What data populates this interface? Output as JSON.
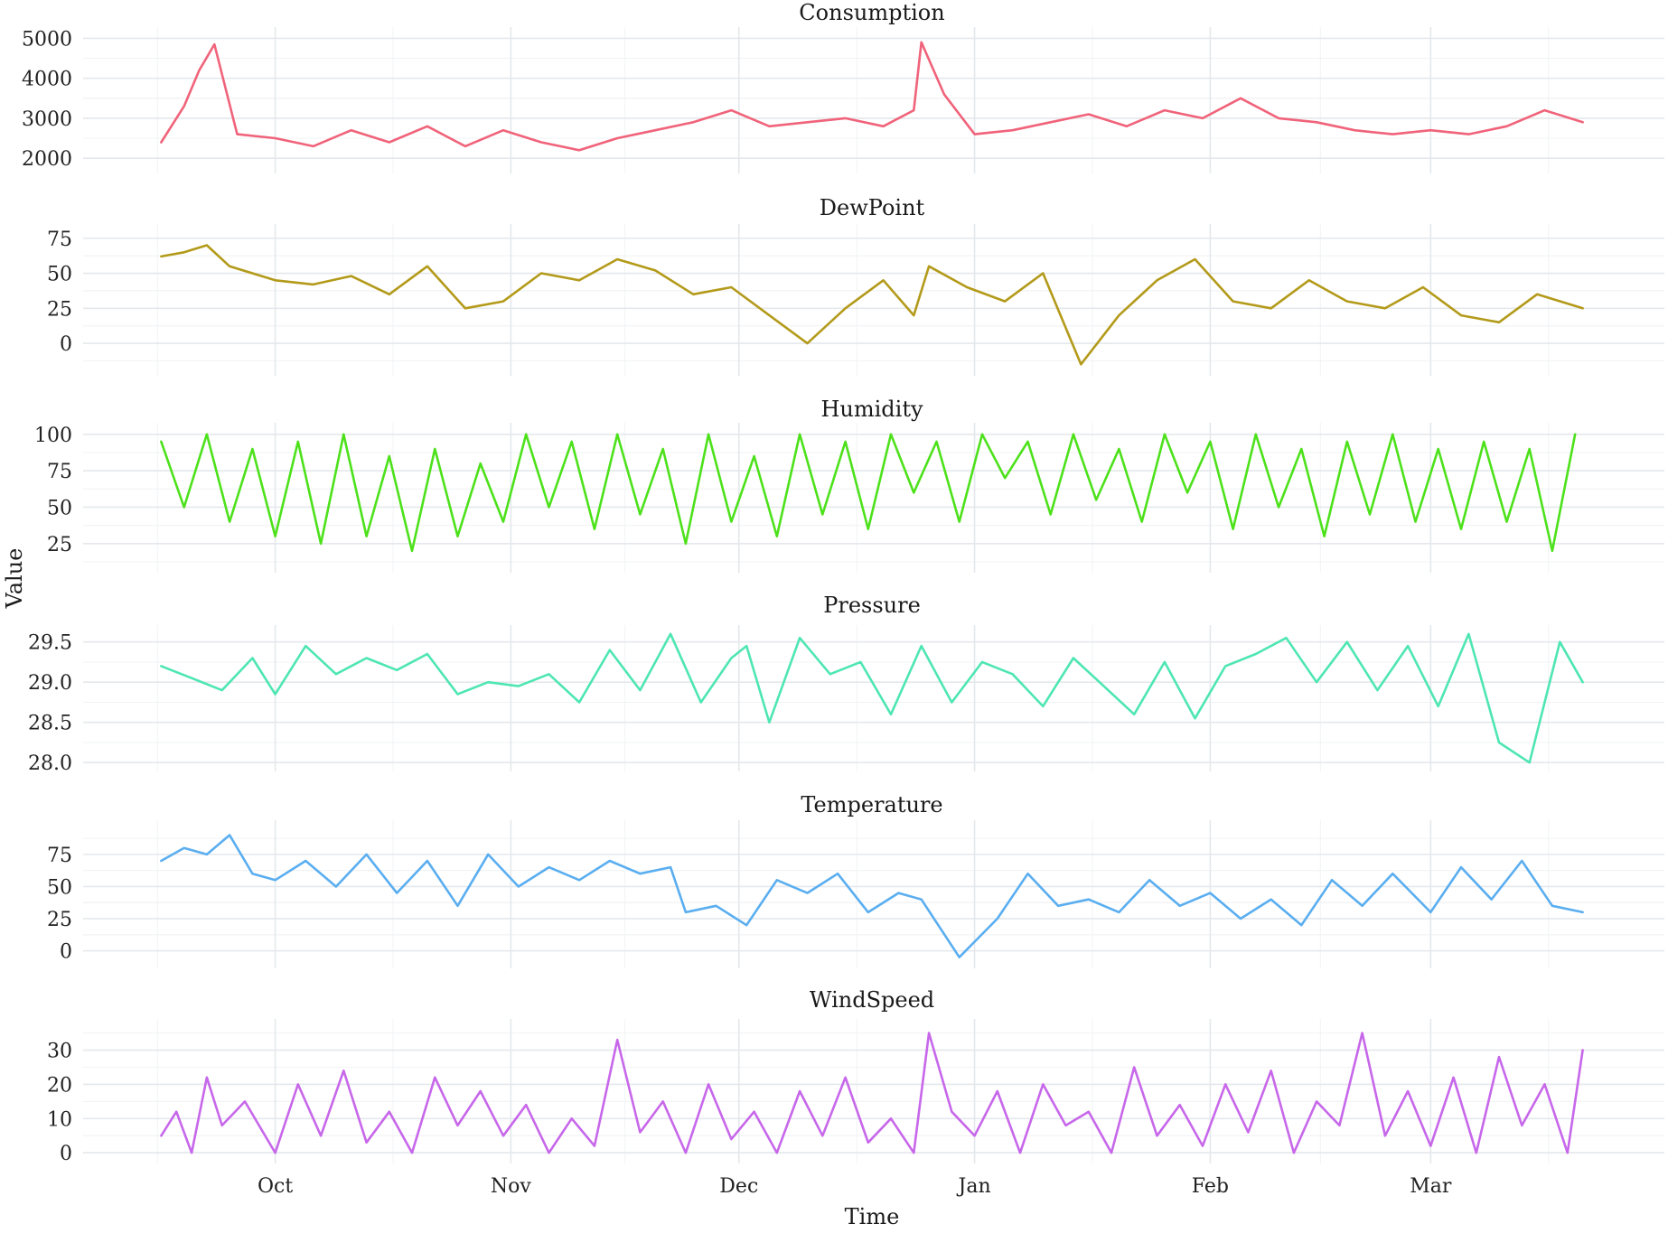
{
  "chart_data": {
    "type": "line",
    "xlabel": "Time",
    "ylabel": "Value",
    "x_range": [
      "2015-09-15",
      "2016-03-22"
    ],
    "x_ticks": [
      {
        "date": "2015-10-01",
        "label": "Oct"
      },
      {
        "date": "2015-11-01",
        "label": "Nov"
      },
      {
        "date": "2015-12-01",
        "label": "Dec"
      },
      {
        "date": "2016-01-01",
        "label": "Jan"
      },
      {
        "date": "2016-02-01",
        "label": "Feb"
      },
      {
        "date": "2016-03-01",
        "label": "Mar"
      }
    ],
    "grid": true,
    "legend": "none",
    "panels": [
      {
        "name": "Consumption",
        "color": "#f0637a",
        "ylim": [
          1800,
          5100
        ],
        "yticks": [
          2000,
          3000,
          4000,
          5000
        ],
        "ytick_labels": [
          "2000",
          "3000",
          "4000",
          "5000"
        ],
        "x": [
          "2015-09-16",
          "2015-09-19",
          "2015-09-21",
          "2015-09-23",
          "2015-09-26",
          "2015-10-01",
          "2015-10-06",
          "2015-10-11",
          "2015-10-16",
          "2015-10-21",
          "2015-10-26",
          "2015-10-31",
          "2015-11-05",
          "2015-11-10",
          "2015-11-15",
          "2015-11-20",
          "2015-11-25",
          "2015-11-30",
          "2015-12-05",
          "2015-12-10",
          "2015-12-15",
          "2015-12-20",
          "2015-12-24",
          "2015-12-25",
          "2015-12-28",
          "2016-01-01",
          "2016-01-06",
          "2016-01-11",
          "2016-01-16",
          "2016-01-21",
          "2016-01-26",
          "2016-01-31",
          "2016-02-05",
          "2016-02-10",
          "2016-02-15",
          "2016-02-20",
          "2016-02-25",
          "2016-03-01",
          "2016-03-06",
          "2016-03-11",
          "2016-03-16",
          "2016-03-21"
        ],
        "values": [
          2400,
          3300,
          4200,
          4850,
          2600,
          2500,
          2300,
          2700,
          2400,
          2800,
          2300,
          2700,
          2400,
          2200,
          2500,
          2700,
          2900,
          3200,
          2800,
          2900,
          3000,
          2800,
          3200,
          4900,
          3600,
          2600,
          2700,
          2900,
          3100,
          2800,
          3200,
          3000,
          3500,
          3000,
          2900,
          2700,
          2600,
          2700,
          2600,
          2800,
          3200,
          2900
        ]
      },
      {
        "name": "DewPoint",
        "color": "#b39a1a",
        "ylim": [
          -18,
          80
        ],
        "yticks": [
          0,
          25,
          50,
          75
        ],
        "ytick_labels": [
          "0",
          "25",
          "50",
          "75"
        ],
        "x": [
          "2015-09-16",
          "2015-09-19",
          "2015-09-22",
          "2015-09-25",
          "2015-10-01",
          "2015-10-06",
          "2015-10-11",
          "2015-10-16",
          "2015-10-21",
          "2015-10-26",
          "2015-10-31",
          "2015-11-05",
          "2015-11-10",
          "2015-11-15",
          "2015-11-20",
          "2015-11-25",
          "2015-11-30",
          "2015-12-05",
          "2015-12-10",
          "2015-12-15",
          "2015-12-20",
          "2015-12-24",
          "2015-12-26",
          "2015-12-31",
          "2016-01-05",
          "2016-01-10",
          "2016-01-15",
          "2016-01-20",
          "2016-01-25",
          "2016-01-30",
          "2016-02-04",
          "2016-02-09",
          "2016-02-14",
          "2016-02-19",
          "2016-02-24",
          "2016-02-29",
          "2016-03-05",
          "2016-03-10",
          "2016-03-15",
          "2016-03-21"
        ],
        "values": [
          62,
          65,
          70,
          55,
          45,
          42,
          48,
          35,
          55,
          25,
          30,
          50,
          45,
          60,
          52,
          35,
          40,
          20,
          0,
          25,
          45,
          20,
          55,
          40,
          30,
          50,
          -15,
          20,
          45,
          60,
          30,
          25,
          45,
          30,
          25,
          40,
          20,
          15,
          35,
          25
        ]
      },
      {
        "name": "Humidity",
        "color": "#4de11b",
        "ylim": [
          10,
          103
        ],
        "yticks": [
          25,
          50,
          75,
          100
        ],
        "ytick_labels": [
          "25",
          "50",
          "75",
          "100"
        ],
        "x": [
          "2015-09-16",
          "2015-09-19",
          "2015-09-22",
          "2015-09-25",
          "2015-09-28",
          "2015-10-01",
          "2015-10-04",
          "2015-10-07",
          "2015-10-10",
          "2015-10-13",
          "2015-10-16",
          "2015-10-19",
          "2015-10-22",
          "2015-10-25",
          "2015-10-28",
          "2015-10-31",
          "2015-11-03",
          "2015-11-06",
          "2015-11-09",
          "2015-11-12",
          "2015-11-15",
          "2015-11-18",
          "2015-11-21",
          "2015-11-24",
          "2015-11-27",
          "2015-11-30",
          "2015-12-03",
          "2015-12-06",
          "2015-12-09",
          "2015-12-12",
          "2015-12-15",
          "2015-12-18",
          "2015-12-21",
          "2015-12-24",
          "2015-12-27",
          "2015-12-30",
          "2016-01-02",
          "2016-01-05",
          "2016-01-08",
          "2016-01-11",
          "2016-01-14",
          "2016-01-17",
          "2016-01-20",
          "2016-01-23",
          "2016-01-26",
          "2016-01-29",
          "2016-02-01",
          "2016-02-04",
          "2016-02-07",
          "2016-02-10",
          "2016-02-13",
          "2016-02-16",
          "2016-02-19",
          "2016-02-22",
          "2016-02-25",
          "2016-02-28",
          "2016-03-02",
          "2016-03-05",
          "2016-03-08",
          "2016-03-11",
          "2016-03-14",
          "2016-03-17",
          "2016-03-20"
        ],
        "values": [
          95,
          50,
          100,
          40,
          90,
          30,
          95,
          25,
          100,
          30,
          85,
          20,
          90,
          30,
          80,
          40,
          100,
          50,
          95,
          35,
          100,
          45,
          90,
          25,
          100,
          40,
          85,
          30,
          100,
          45,
          95,
          35,
          100,
          60,
          95,
          40,
          100,
          70,
          95,
          45,
          100,
          55,
          90,
          40,
          100,
          60,
          95,
          35,
          100,
          50,
          90,
          30,
          95,
          45,
          100,
          40,
          90,
          35,
          95,
          40,
          90,
          20,
          100
        ]
      },
      {
        "name": "Pressure",
        "color": "#4ee6b2",
        "ylim": [
          27.98,
          29.62
        ],
        "yticks": [
          28.0,
          28.5,
          29.0,
          29.5
        ],
        "ytick_labels": [
          "28.0",
          "28.5",
          "29.0",
          "29.5"
        ],
        "x": [
          "2015-09-16",
          "2015-09-20",
          "2015-09-24",
          "2015-09-28",
          "2015-10-01",
          "2015-10-05",
          "2015-10-09",
          "2015-10-13",
          "2015-10-17",
          "2015-10-21",
          "2015-10-25",
          "2015-10-29",
          "2015-11-02",
          "2015-11-06",
          "2015-11-10",
          "2015-11-14",
          "2015-11-18",
          "2015-11-22",
          "2015-11-26",
          "2015-11-30",
          "2015-12-02",
          "2015-12-05",
          "2015-12-09",
          "2015-12-13",
          "2015-12-17",
          "2015-12-21",
          "2015-12-25",
          "2015-12-29",
          "2016-01-02",
          "2016-01-06",
          "2016-01-10",
          "2016-01-14",
          "2016-01-18",
          "2016-01-22",
          "2016-01-26",
          "2016-01-30",
          "2016-02-03",
          "2016-02-07",
          "2016-02-11",
          "2016-02-15",
          "2016-02-19",
          "2016-02-23",
          "2016-02-27",
          "2016-03-02",
          "2016-03-06",
          "2016-03-10",
          "2016-03-14",
          "2016-03-18",
          "2016-03-21"
        ],
        "values": [
          29.2,
          29.05,
          28.9,
          29.3,
          28.85,
          29.45,
          29.1,
          29.3,
          29.15,
          29.35,
          28.85,
          29.0,
          28.95,
          29.1,
          28.75,
          29.4,
          28.9,
          29.6,
          28.75,
          29.3,
          29.45,
          28.5,
          29.55,
          29.1,
          29.25,
          28.6,
          29.45,
          28.75,
          29.25,
          29.1,
          28.7,
          29.3,
          28.95,
          28.6,
          29.25,
          28.55,
          29.2,
          29.35,
          29.55,
          29.0,
          29.5,
          28.9,
          29.45,
          28.7,
          29.6,
          28.25,
          28.0,
          29.5,
          29.0
        ]
      },
      {
        "name": "Temperature",
        "color": "#5aaef0",
        "ylim": [
          -8,
          96
        ],
        "yticks": [
          0,
          25,
          50,
          75
        ],
        "ytick_labels": [
          "0",
          "25",
          "50",
          "75"
        ],
        "x": [
          "2015-09-16",
          "2015-09-19",
          "2015-09-22",
          "2015-09-25",
          "2015-09-28",
          "2015-10-01",
          "2015-10-05",
          "2015-10-09",
          "2015-10-13",
          "2015-10-17",
          "2015-10-21",
          "2015-10-25",
          "2015-10-29",
          "2015-11-02",
          "2015-11-06",
          "2015-11-10",
          "2015-11-14",
          "2015-11-18",
          "2015-11-22",
          "2015-11-24",
          "2015-11-28",
          "2015-12-02",
          "2015-12-06",
          "2015-12-10",
          "2015-12-14",
          "2015-12-18",
          "2015-12-22",
          "2015-12-25",
          "2015-12-30",
          "2016-01-04",
          "2016-01-08",
          "2016-01-12",
          "2016-01-16",
          "2016-01-20",
          "2016-01-24",
          "2016-01-28",
          "2016-02-01",
          "2016-02-05",
          "2016-02-09",
          "2016-02-13",
          "2016-02-17",
          "2016-02-21",
          "2016-02-25",
          "2016-03-01",
          "2016-03-05",
          "2016-03-09",
          "2016-03-13",
          "2016-03-17",
          "2016-03-21"
        ],
        "values": [
          70,
          80,
          75,
          90,
          60,
          55,
          70,
          50,
          75,
          45,
          70,
          35,
          75,
          50,
          65,
          55,
          70,
          60,
          65,
          30,
          35,
          20,
          55,
          45,
          60,
          30,
          45,
          40,
          -5,
          25,
          60,
          35,
          40,
          30,
          55,
          35,
          45,
          25,
          40,
          20,
          55,
          35,
          60,
          30,
          65,
          40,
          70,
          35,
          30
        ]
      },
      {
        "name": "WindSpeed",
        "color": "#c767ea",
        "ylim": [
          -1,
          37
        ],
        "yticks": [
          0,
          10,
          20,
          30
        ],
        "ytick_labels": [
          "0",
          "10",
          "20",
          "30"
        ],
        "x": [
          "2015-09-16",
          "2015-09-18",
          "2015-09-20",
          "2015-09-22",
          "2015-09-24",
          "2015-09-27",
          "2015-10-01",
          "2015-10-04",
          "2015-10-07",
          "2015-10-10",
          "2015-10-13",
          "2015-10-16",
          "2015-10-19",
          "2015-10-22",
          "2015-10-25",
          "2015-10-28",
          "2015-10-31",
          "2015-11-03",
          "2015-11-06",
          "2015-11-09",
          "2015-11-12",
          "2015-11-15",
          "2015-11-18",
          "2015-11-21",
          "2015-11-24",
          "2015-11-27",
          "2015-11-30",
          "2015-12-03",
          "2015-12-06",
          "2015-12-09",
          "2015-12-12",
          "2015-12-15",
          "2015-12-18",
          "2015-12-21",
          "2015-12-24",
          "2015-12-26",
          "2015-12-29",
          "2016-01-01",
          "2016-01-04",
          "2016-01-07",
          "2016-01-10",
          "2016-01-13",
          "2016-01-16",
          "2016-01-19",
          "2016-01-22",
          "2016-01-25",
          "2016-01-28",
          "2016-01-31",
          "2016-02-03",
          "2016-02-06",
          "2016-02-09",
          "2016-02-12",
          "2016-02-15",
          "2016-02-18",
          "2016-02-21",
          "2016-02-24",
          "2016-02-27",
          "2016-03-01",
          "2016-03-04",
          "2016-03-07",
          "2016-03-10",
          "2016-03-13",
          "2016-03-16",
          "2016-03-19",
          "2016-03-21"
        ],
        "values": [
          5,
          12,
          0,
          22,
          8,
          15,
          0,
          20,
          5,
          24,
          3,
          12,
          0,
          22,
          8,
          18,
          5,
          14,
          0,
          10,
          2,
          33,
          6,
          15,
          0,
          20,
          4,
          12,
          0,
          18,
          5,
          22,
          3,
          10,
          0,
          35,
          12,
          5,
          18,
          0,
          20,
          8,
          12,
          0,
          25,
          5,
          14,
          2,
          20,
          6,
          24,
          0,
          15,
          8,
          35,
          5,
          18,
          2,
          22,
          0,
          28,
          8,
          20,
          0,
          30
        ]
      }
    ]
  }
}
